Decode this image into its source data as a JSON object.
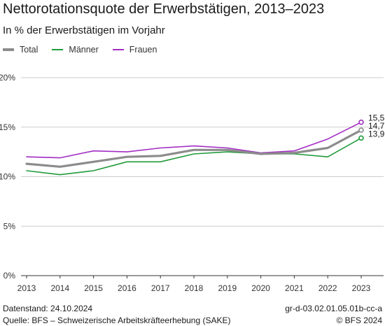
{
  "header": {
    "title": "Nettorotationsquote der Erwerbstätigen, 2013–2023",
    "subtitle": "In % der Erwerbstätigen im Vorjahr"
  },
  "footer": {
    "datenstand": "Datenstand: 24.10.2024",
    "quelle": "Quelle: BFS – Schweizerische Arbeitskräfteerhebung (SAKE)",
    "code": "gr-d-03.02.01.05.01b-cc-a",
    "copyright": "© BFS 2024"
  },
  "chart_data": {
    "type": "line",
    "title": "Nettorotationsquote der Erwerbstätigen, 2013–2023",
    "subtitle": "In % der Erwerbstätigen im Vorjahr",
    "xlabel": "",
    "ylabel": "",
    "x": [
      2013,
      2014,
      2015,
      2016,
      2017,
      2018,
      2019,
      2020,
      2021,
      2022,
      2023
    ],
    "ylim": [
      0,
      20
    ],
    "yticks": [
      "0%",
      "5%",
      "10%",
      "15%",
      "20%"
    ],
    "grid": true,
    "legend_position": "top-left",
    "series": [
      {
        "name": "Total",
        "color": "#8c8c8c",
        "values": [
          11.3,
          11.0,
          11.5,
          12.0,
          12.1,
          12.7,
          12.7,
          12.3,
          12.4,
          12.9,
          14.7
        ],
        "end_label": "14,7"
      },
      {
        "name": "Männer",
        "color": "#1f9a3a",
        "values": [
          10.6,
          10.2,
          10.6,
          11.5,
          11.5,
          12.3,
          12.5,
          12.3,
          12.3,
          12.0,
          13.9
        ],
        "end_label": "13,9"
      },
      {
        "name": "Frauen",
        "color": "#a32cc4",
        "values": [
          12.0,
          11.9,
          12.6,
          12.5,
          12.9,
          13.1,
          12.9,
          12.4,
          12.6,
          13.8,
          15.5
        ],
        "end_label": "15,5"
      }
    ]
  }
}
